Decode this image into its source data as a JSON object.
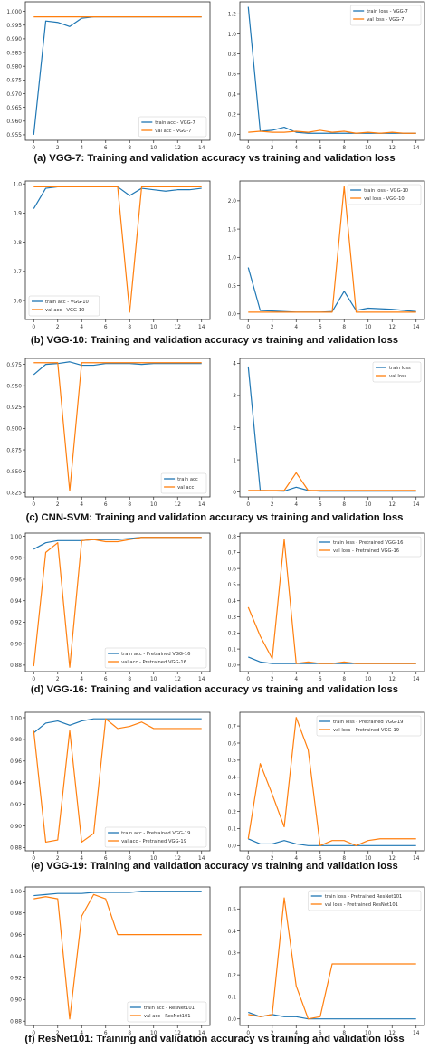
{
  "colors": {
    "train": "#1f77b4",
    "val": "#ff7f0e",
    "frame": "#2b2b2b",
    "text": "#333333"
  },
  "captions": [
    "(a) VGG-7: Training and validation accuracy vs training and validation loss",
    "(b) VGG-10: Training and validation accuracy vs training and validation loss",
    "(c) CNN-SVM: Training and validation accuracy vs training and validation loss",
    "(d) VGG-16: Training and validation accuracy vs training and validation loss",
    "(e) VGG-19: Training and validation accuracy vs training and validation loss",
    "(f) ResNet101: Training and validation accuracy vs training and validation loss"
  ],
  "chart_data": [
    {
      "type": "line",
      "xlim": [
        -0.7,
        14.7
      ],
      "ylim": [
        0.953,
        1.0035
      ],
      "xticks": [
        0,
        2,
        4,
        6,
        8,
        10,
        12,
        14
      ],
      "yticks": [
        {
          "v": 0.955,
          "l": "0.955"
        },
        {
          "v": 0.96,
          "l": "0.960"
        },
        {
          "v": 0.965,
          "l": "0.965"
        },
        {
          "v": 0.97,
          "l": "0.970"
        },
        {
          "v": 0.975,
          "l": "0.975"
        },
        {
          "v": 0.98,
          "l": "0.980"
        },
        {
          "v": 0.985,
          "l": "0.985"
        },
        {
          "v": 0.99,
          "l": "0.990"
        },
        {
          "v": 0.995,
          "l": "0.995"
        },
        {
          "v": 1.0,
          "l": "1.000"
        }
      ],
      "legend_pos": "lower-right",
      "series": [
        {
          "name": "train acc - VGG-7",
          "values": [
            0.955,
            0.9965,
            0.996,
            0.9945,
            0.9975,
            0.998,
            0.998,
            0.998,
            0.998,
            0.998,
            0.998,
            0.998,
            0.998,
            0.998,
            0.998
          ]
        },
        {
          "name": "val acc - VGG-7",
          "values": [
            0.998,
            0.998,
            0.998,
            0.998,
            0.998,
            0.998,
            0.998,
            0.998,
            0.998,
            0.998,
            0.998,
            0.998,
            0.998,
            0.998,
            0.998
          ]
        }
      ]
    },
    {
      "type": "line",
      "xlim": [
        -0.7,
        14.7
      ],
      "ylim": [
        -0.06,
        1.32
      ],
      "xticks": [
        0,
        2,
        4,
        6,
        8,
        10,
        12,
        14
      ],
      "yticks": [
        {
          "v": 0,
          "l": "0.0"
        },
        {
          "v": 0.2,
          "l": "0.2"
        },
        {
          "v": 0.4,
          "l": "0.4"
        },
        {
          "v": 0.6,
          "l": "0.6"
        },
        {
          "v": 0.8,
          "l": "0.8"
        },
        {
          "v": 1.0,
          "l": "1.0"
        },
        {
          "v": 1.2,
          "l": "1.2"
        }
      ],
      "legend_pos": "upper-right",
      "series": [
        {
          "name": "train loss - VGG-7",
          "values": [
            1.27,
            0.03,
            0.04,
            0.07,
            0.02,
            0.01,
            0.01,
            0.01,
            0.01,
            0.01,
            0.01,
            0.01,
            0.01,
            0.01,
            0.01
          ]
        },
        {
          "name": "val loss - VGG-7",
          "values": [
            0.02,
            0.03,
            0.02,
            0.02,
            0.03,
            0.02,
            0.04,
            0.02,
            0.03,
            0.01,
            0.02,
            0.01,
            0.02,
            0.01,
            0.01
          ]
        }
      ]
    },
    {
      "type": "line",
      "xlim": [
        -0.7,
        14.7
      ],
      "ylim": [
        0.535,
        1.01
      ],
      "xticks": [
        0,
        2,
        4,
        6,
        8,
        10,
        12,
        14
      ],
      "yticks": [
        {
          "v": 0.6,
          "l": "0.6"
        },
        {
          "v": 0.7,
          "l": "0.7"
        },
        {
          "v": 0.8,
          "l": "0.8"
        },
        {
          "v": 0.9,
          "l": "0.9"
        },
        {
          "v": 1.0,
          "l": "1.0"
        }
      ],
      "legend_pos": "lower-left",
      "series": [
        {
          "name": "train acc - VGG-10",
          "values": [
            0.915,
            0.985,
            0.99,
            0.99,
            0.99,
            0.99,
            0.99,
            0.99,
            0.96,
            0.985,
            0.98,
            0.975,
            0.98,
            0.98,
            0.985
          ]
        },
        {
          "name": "val acc - VGG-10",
          "values": [
            0.99,
            0.99,
            0.99,
            0.99,
            0.99,
            0.99,
            0.99,
            0.99,
            0.56,
            0.99,
            0.99,
            0.99,
            0.99,
            0.99,
            0.99
          ]
        }
      ]
    },
    {
      "type": "line",
      "xlim": [
        -0.7,
        14.7
      ],
      "ylim": [
        -0.1,
        2.35
      ],
      "xticks": [
        0,
        2,
        4,
        6,
        8,
        10,
        12,
        14
      ],
      "yticks": [
        {
          "v": 0,
          "l": "0.0"
        },
        {
          "v": 0.5,
          "l": "0.5"
        },
        {
          "v": 1.0,
          "l": "1.0"
        },
        {
          "v": 1.5,
          "l": "1.5"
        },
        {
          "v": 2.0,
          "l": "2.0"
        }
      ],
      "legend_pos": "upper-right",
      "series": [
        {
          "name": "train loss - VGG-10",
          "values": [
            0.82,
            0.06,
            0.05,
            0.04,
            0.03,
            0.03,
            0.03,
            0.04,
            0.4,
            0.06,
            0.1,
            0.09,
            0.08,
            0.06,
            0.04
          ]
        },
        {
          "name": "val loss - VGG-10",
          "values": [
            0.03,
            0.03,
            0.03,
            0.03,
            0.03,
            0.03,
            0.03,
            0.03,
            2.25,
            0.03,
            0.03,
            0.03,
            0.03,
            0.03,
            0.03
          ]
        }
      ]
    },
    {
      "type": "line",
      "xlim": [
        -0.7,
        14.7
      ],
      "ylim": [
        0.82,
        0.982
      ],
      "xticks": [
        0,
        2,
        4,
        6,
        8,
        10,
        12,
        14
      ],
      "yticks": [
        {
          "v": 0.825,
          "l": "0.825"
        },
        {
          "v": 0.85,
          "l": "0.850"
        },
        {
          "v": 0.875,
          "l": "0.875"
        },
        {
          "v": 0.9,
          "l": "0.900"
        },
        {
          "v": 0.925,
          "l": "0.925"
        },
        {
          "v": 0.95,
          "l": "0.950"
        },
        {
          "v": 0.975,
          "l": "0.975"
        }
      ],
      "legend_pos": "lower-right",
      "series": [
        {
          "name": "train acc",
          "values": [
            0.963,
            0.975,
            0.976,
            0.978,
            0.974,
            0.974,
            0.976,
            0.976,
            0.976,
            0.975,
            0.976,
            0.976,
            0.976,
            0.976,
            0.976
          ]
        },
        {
          "name": "val acc",
          "values": [
            0.977,
            0.977,
            0.977,
            0.827,
            0.977,
            0.977,
            0.977,
            0.977,
            0.977,
            0.977,
            0.977,
            0.977,
            0.977,
            0.977,
            0.977
          ]
        }
      ]
    },
    {
      "type": "line",
      "xlim": [
        -0.7,
        14.7
      ],
      "ylim": [
        -0.15,
        4.15
      ],
      "xticks": [
        0,
        2,
        4,
        6,
        8,
        10,
        12,
        14
      ],
      "yticks": [
        {
          "v": 0,
          "l": "0"
        },
        {
          "v": 1,
          "l": "1"
        },
        {
          "v": 2,
          "l": "2"
        },
        {
          "v": 3,
          "l": "3"
        },
        {
          "v": 4,
          "l": "4"
        }
      ],
      "legend_pos": "upper-right",
      "series": [
        {
          "name": "train loss",
          "values": [
            3.9,
            0.05,
            0.04,
            0.03,
            0.15,
            0.05,
            0.03,
            0.03,
            0.03,
            0.03,
            0.03,
            0.03,
            0.03,
            0.03,
            0.03
          ]
        },
        {
          "name": "val loss",
          "values": [
            0.05,
            0.05,
            0.05,
            0.05,
            0.6,
            0.05,
            0.05,
            0.05,
            0.05,
            0.05,
            0.05,
            0.05,
            0.05,
            0.05,
            0.05
          ]
        }
      ]
    },
    {
      "type": "line",
      "xlim": [
        -0.7,
        14.7
      ],
      "ylim": [
        0.874,
        1.003
      ],
      "xticks": [
        0,
        2,
        4,
        6,
        8,
        10,
        12,
        14
      ],
      "yticks": [
        {
          "v": 0.88,
          "l": "0.88"
        },
        {
          "v": 0.9,
          "l": "0.90"
        },
        {
          "v": 0.92,
          "l": "0.92"
        },
        {
          "v": 0.94,
          "l": "0.94"
        },
        {
          "v": 0.96,
          "l": "0.96"
        },
        {
          "v": 0.98,
          "l": "0.98"
        },
        {
          "v": 1.0,
          "l": "1.00"
        }
      ],
      "legend_pos": "lower-right",
      "series": [
        {
          "name": "train acc - Pretrained VGG-16",
          "values": [
            0.988,
            0.994,
            0.996,
            0.996,
            0.996,
            0.997,
            0.997,
            0.997,
            0.998,
            0.999,
            0.999,
            0.999,
            0.999,
            0.999,
            0.999
          ]
        },
        {
          "name": "val acc - Pretrained VGG-16",
          "values": [
            0.879,
            0.985,
            0.994,
            0.878,
            0.996,
            0.997,
            0.995,
            0.995,
            0.997,
            0.999,
            0.999,
            0.999,
            0.999,
            0.999,
            0.999
          ]
        }
      ]
    },
    {
      "type": "line",
      "xlim": [
        -0.7,
        14.7
      ],
      "ylim": [
        -0.04,
        0.82
      ],
      "xticks": [
        0,
        2,
        4,
        6,
        8,
        10,
        12,
        14
      ],
      "yticks": [
        {
          "v": 0,
          "l": "0.0"
        },
        {
          "v": 0.1,
          "l": "0.1"
        },
        {
          "v": 0.2,
          "l": "0.2"
        },
        {
          "v": 0.3,
          "l": "0.3"
        },
        {
          "v": 0.4,
          "l": "0.4"
        },
        {
          "v": 0.5,
          "l": "0.5"
        },
        {
          "v": 0.6,
          "l": "0.6"
        },
        {
          "v": 0.7,
          "l": "0.7"
        },
        {
          "v": 0.8,
          "l": "0.8"
        }
      ],
      "legend_pos": "upper-right",
      "series": [
        {
          "name": "train loss - Pretrained VGG-16",
          "values": [
            0.05,
            0.02,
            0.01,
            0.01,
            0.01,
            0.01,
            0.01,
            0.01,
            0.01,
            0.01,
            0.01,
            0.01,
            0.01,
            0.01,
            0.01
          ]
        },
        {
          "name": "val loss - Pretrained VGG-16",
          "values": [
            0.36,
            0.18,
            0.04,
            0.78,
            0.01,
            0.02,
            0.01,
            0.01,
            0.02,
            0.01,
            0.01,
            0.01,
            0.01,
            0.01,
            0.01
          ]
        }
      ]
    },
    {
      "type": "line",
      "xlim": [
        -0.7,
        14.7
      ],
      "ylim": [
        0.877,
        1.005
      ],
      "xticks": [
        0,
        2,
        4,
        6,
        8,
        10,
        12,
        14
      ],
      "yticks": [
        {
          "v": 0.88,
          "l": "0.88"
        },
        {
          "v": 0.9,
          "l": "0.90"
        },
        {
          "v": 0.92,
          "l": "0.92"
        },
        {
          "v": 0.94,
          "l": "0.94"
        },
        {
          "v": 0.96,
          "l": "0.96"
        },
        {
          "v": 0.98,
          "l": "0.98"
        },
        {
          "v": 1.0,
          "l": "1.00"
        }
      ],
      "legend_pos": "lower-right",
      "series": [
        {
          "name": "train acc - Pretrained VGG-19",
          "values": [
            0.986,
            0.995,
            0.997,
            0.993,
            0.997,
            0.999,
            0.999,
            0.999,
            0.999,
            0.999,
            0.999,
            0.999,
            0.999,
            0.999,
            0.999
          ]
        },
        {
          "name": "val acc - Pretrained VGG-19",
          "values": [
            0.988,
            0.885,
            0.887,
            0.988,
            0.885,
            0.893,
            0.999,
            0.99,
            0.992,
            0.996,
            0.99,
            0.99,
            0.99,
            0.99,
            0.99
          ]
        }
      ]
    },
    {
      "type": "line",
      "xlim": [
        -0.7,
        14.7
      ],
      "ylim": [
        -0.03,
        0.78
      ],
      "xticks": [
        0,
        2,
        4,
        6,
        8,
        10,
        12,
        14
      ],
      "yticks": [
        {
          "v": 0,
          "l": "0.0"
        },
        {
          "v": 0.1,
          "l": "0.1"
        },
        {
          "v": 0.2,
          "l": "0.2"
        },
        {
          "v": 0.3,
          "l": "0.3"
        },
        {
          "v": 0.4,
          "l": "0.4"
        },
        {
          "v": 0.5,
          "l": "0.5"
        },
        {
          "v": 0.6,
          "l": "0.6"
        },
        {
          "v": 0.7,
          "l": "0.7"
        }
      ],
      "legend_pos": "upper-right",
      "series": [
        {
          "name": "train loss - Pretrained VGG-19",
          "values": [
            0.04,
            0.01,
            0.01,
            0.03,
            0.01,
            0.0,
            0.0,
            0.0,
            0.0,
            0.0,
            0.0,
            0.0,
            0.0,
            0.0,
            0.0
          ]
        },
        {
          "name": "val loss - Pretrained VGG-19",
          "values": [
            0.04,
            0.48,
            0.3,
            0.11,
            0.75,
            0.56,
            0.0,
            0.03,
            0.03,
            0.0,
            0.03,
            0.04,
            0.04,
            0.04,
            0.04
          ]
        }
      ]
    },
    {
      "type": "line",
      "xlim": [
        -0.7,
        14.7
      ],
      "ylim": [
        0.876,
        1.004
      ],
      "xticks": [
        0,
        2,
        4,
        6,
        8,
        10,
        12,
        14
      ],
      "yticks": [
        {
          "v": 0.88,
          "l": "0.88"
        },
        {
          "v": 0.9,
          "l": "0.90"
        },
        {
          "v": 0.92,
          "l": "0.92"
        },
        {
          "v": 0.94,
          "l": "0.94"
        },
        {
          "v": 0.96,
          "l": "0.96"
        },
        {
          "v": 0.98,
          "l": "0.98"
        },
        {
          "v": 1.0,
          "l": "1.00"
        }
      ],
      "legend_pos": "lower-right",
      "series": [
        {
          "name": "train acc - ResNet101",
          "values": [
            0.996,
            0.997,
            0.998,
            0.998,
            0.998,
            0.999,
            0.999,
            0.999,
            0.999,
            1.0,
            1.0,
            1.0,
            1.0,
            1.0,
            1.0
          ]
        },
        {
          "name": "val acc - ResNet101",
          "values": [
            0.993,
            0.995,
            0.993,
            0.882,
            0.977,
            0.997,
            0.993,
            0.96,
            0.96,
            0.96,
            0.96,
            0.96,
            0.96,
            0.96,
            0.96
          ]
        }
      ]
    },
    {
      "type": "line",
      "xlim": [
        -0.7,
        14.7
      ],
      "ylim": [
        -0.03,
        0.6
      ],
      "xticks": [
        0,
        2,
        4,
        6,
        8,
        10,
        12,
        14
      ],
      "yticks": [
        {
          "v": 0,
          "l": "0.0"
        },
        {
          "v": 0.1,
          "l": "0.1"
        },
        {
          "v": 0.2,
          "l": "0.2"
        },
        {
          "v": 0.3,
          "l": "0.3"
        },
        {
          "v": 0.4,
          "l": "0.4"
        },
        {
          "v": 0.5,
          "l": "0.5"
        }
      ],
      "legend_pos": "upper-right",
      "series": [
        {
          "name": "train loss - Pretrained ResNet101",
          "values": [
            0.03,
            0.01,
            0.02,
            0.01,
            0.01,
            0.0,
            0.0,
            0.0,
            0.0,
            0.0,
            0.0,
            0.0,
            0.0,
            0.0,
            0.0
          ]
        },
        {
          "name": "val loss - Pretrained ResNet101",
          "values": [
            0.02,
            0.01,
            0.02,
            0.55,
            0.15,
            0.0,
            0.01,
            0.25,
            0.25,
            0.25,
            0.25,
            0.25,
            0.25,
            0.25,
            0.25
          ]
        }
      ]
    }
  ]
}
